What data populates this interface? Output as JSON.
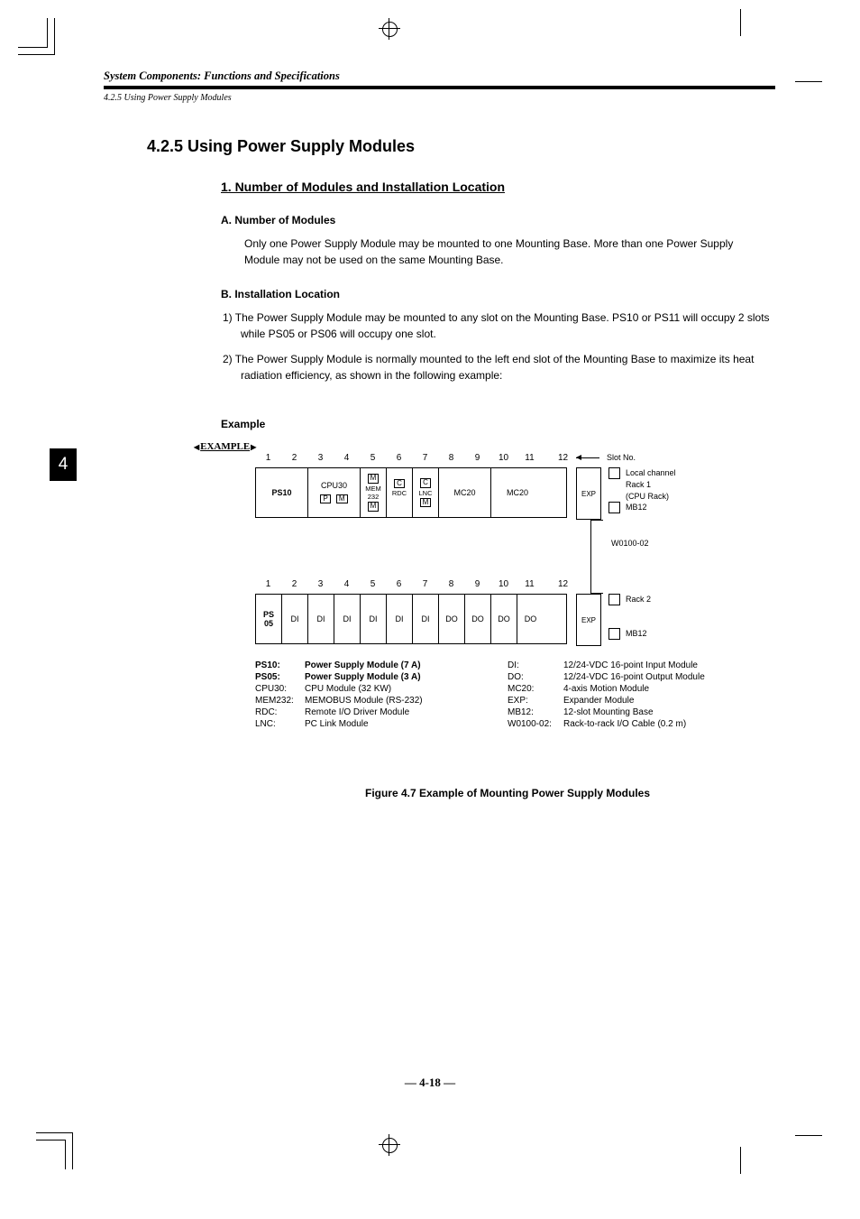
{
  "header": {
    "running": "System Components: Functions and Specifications",
    "sub": "4.2.5 Using Power Supply Modules"
  },
  "chapter_tab": "4",
  "h1": "4.2.5  Using Power Supply Modules",
  "h2_1": "1.  Number of Modules and Installation Location",
  "h3_a": "A.  Number of Modules",
  "para_a": "Only one Power Supply Module may be mounted to one Mounting Base. More than one Power Supply Module may not be used on the same Mounting Base.",
  "h3_b": "B.  Installation Location",
  "para_b1": "1)  The Power Supply Module may be mounted to any slot on the Mounting Base. PS10 or PS11 will occupy 2 slots while PS05 or PS06 will occupy one slot.",
  "example_badge": "EXAMPLE",
  "para_b2": "2)  The Power Supply Module is normally mounted to the left end slot of the Mounting Base to maximize its heat radiation efficiency, as shown in the following example:",
  "example_label": "Example",
  "slots": [
    "1",
    "2",
    "3",
    "4",
    "5",
    "6",
    "7",
    "8",
    "9",
    "10",
    "11",
    "12"
  ],
  "slot_no_label": "Slot No.",
  "rack1": {
    "ps": "PS10",
    "cpu": "CPU30",
    "cpu_sub": [
      "P",
      "M"
    ],
    "mem": {
      "top": "M",
      "mid": "MEM\n232",
      "bot": "M"
    },
    "rdc": {
      "top": "C",
      "mid": "RDC"
    },
    "lnc": {
      "top": "C",
      "mid": "LNC",
      "bot": "M"
    },
    "mc1": "MC20",
    "mc2": "MC20",
    "exp": "EXP",
    "side": [
      "Local channel",
      "Rack 1",
      "(CPU Rack)",
      "MB12"
    ]
  },
  "cable": "W0100-02",
  "rack2": {
    "ps": "PS\n05",
    "cells": [
      "DI",
      "DI",
      "DI",
      "DI",
      "DI",
      "DI",
      "DO",
      "DO",
      "DO",
      "DO"
    ],
    "exp": "EXP",
    "side": [
      "Rack 2",
      "",
      "",
      "MB12"
    ]
  },
  "legend": [
    {
      "l": {
        "k": "PS10:",
        "v": "Power Supply Module (7 A)",
        "b": true
      },
      "r": {
        "k": "DI:",
        "v": "12/24-VDC 16-point Input Module"
      }
    },
    {
      "l": {
        "k": "PS05:",
        "v": "Power Supply Module (3 A)",
        "b": true
      },
      "r": {
        "k": "DO:",
        "v": "12/24-VDC 16-point Output Module"
      }
    },
    {
      "l": {
        "k": "CPU30:",
        "v": "CPU Module (32 KW)"
      },
      "r": {
        "k": "MC20:",
        "v": "4-axis Motion Module"
      }
    },
    {
      "l": {
        "k": "MEM232:",
        "v": "MEMOBUS Module (RS-232)"
      },
      "r": {
        "k": "EXP:",
        "v": "Expander Module"
      }
    },
    {
      "l": {
        "k": "RDC:",
        "v": "Remote I/O Driver Module"
      },
      "r": {
        "k": "MB12:",
        "v": "12-slot Mounting Base"
      }
    },
    {
      "l": {
        "k": "LNC:",
        "v": "PC Link Module"
      },
      "r": {
        "k": "W0100-02:",
        "v": "Rack-to-rack I/O Cable (0.2 m)"
      }
    }
  ],
  "fig_caption": "Figure 4.7 Example of Mounting Power Supply Modules",
  "page_num": "— 4-18 —"
}
